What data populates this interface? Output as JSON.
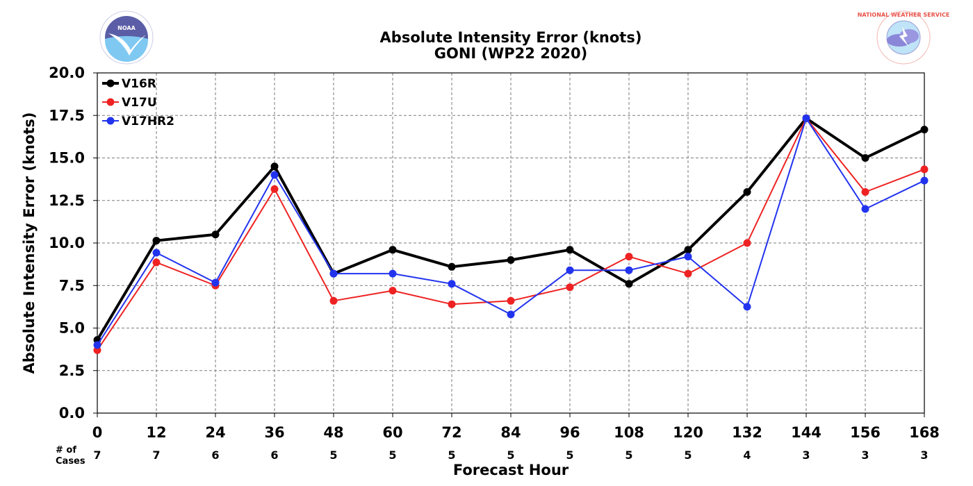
{
  "title": "Absolute Intensity Error (knots)",
  "subtitle": "GONI (WP22 2020)",
  "logos": {
    "left": {
      "icon": "noaa-logo-icon",
      "text": "NOAA",
      "color": "#5b5ea6"
    },
    "right": {
      "icon": "nws-logo-icon",
      "text": "NATIONAL WEATHER SERVICE",
      "color": "#e8534a"
    }
  },
  "chart_data": {
    "type": "line",
    "xlabel": "Forecast Hour",
    "ylabel": "Absolute Intensity Error (knots)",
    "x": [
      0,
      12,
      24,
      36,
      48,
      60,
      72,
      84,
      96,
      108,
      120,
      132,
      144,
      156,
      168
    ],
    "xlim": [
      0,
      168
    ],
    "ylim": [
      0,
      20
    ],
    "yticks": [
      "0.0",
      "2.5",
      "5.0",
      "7.5",
      "10.0",
      "12.5",
      "15.0",
      "17.5",
      "20.0"
    ],
    "grid": true,
    "legend_position": "top-left",
    "cases_label_line1": "# of",
    "cases_label_line2": "Cases",
    "cases": [
      7,
      7,
      6,
      6,
      5,
      5,
      5,
      5,
      5,
      5,
      5,
      4,
      3,
      3,
      3
    ],
    "series": [
      {
        "name": "V16R",
        "color": "#000000",
        "width": 4,
        "values": [
          4.3,
          10.14,
          10.5,
          14.5,
          8.2,
          9.6,
          8.6,
          9.0,
          9.6,
          7.6,
          9.6,
          13.0,
          17.33,
          15.0,
          16.67
        ]
      },
      {
        "name": "V17U",
        "color": "#ee2222",
        "width": 2,
        "values": [
          3.7,
          8.86,
          7.5,
          13.17,
          6.6,
          7.2,
          6.4,
          6.6,
          7.4,
          9.2,
          8.2,
          10.0,
          17.33,
          13.0,
          14.33
        ]
      },
      {
        "name": "V17HR2",
        "color": "#2233ee",
        "width": 2,
        "values": [
          4.0,
          9.43,
          7.67,
          14.0,
          8.2,
          8.2,
          7.6,
          5.8,
          8.4,
          8.4,
          9.2,
          6.25,
          17.33,
          12.0,
          13.67
        ]
      }
    ]
  }
}
